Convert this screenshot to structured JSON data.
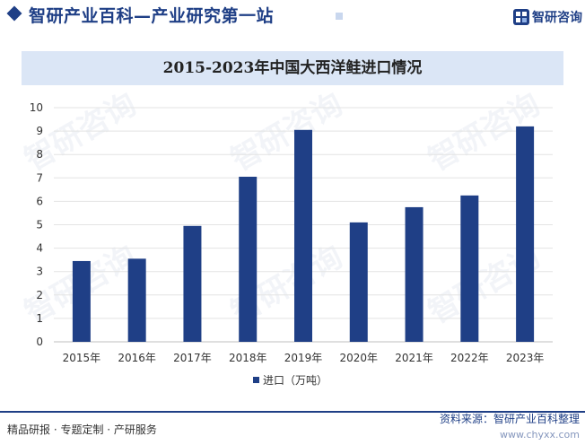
{
  "header": {
    "site_title": "智研产业百科—产业研究第一站",
    "logo_text": "智研咨询",
    "logo_icon": "zhiyan-logo-icon",
    "brand_color": "#1f3f86"
  },
  "watermark_text": "智研咨询",
  "chart_data": {
    "type": "bar",
    "title": "2015-2023年中国大西洋鲑进口情况",
    "categories": [
      "2015年",
      "2016年",
      "2017年",
      "2018年",
      "2019年",
      "2020年",
      "2021年",
      "2022年",
      "2023年"
    ],
    "series": [
      {
        "name": "进口（万吨）",
        "values": [
          3.45,
          3.55,
          4.95,
          7.05,
          9.05,
          5.1,
          5.75,
          6.25,
          9.2
        ],
        "color": "#1f3f86"
      }
    ],
    "ylim": [
      0,
      10
    ],
    "yticks": [
      0,
      1,
      2,
      3,
      4,
      5,
      6,
      7,
      8,
      9,
      10
    ],
    "grid": true,
    "legend": "bottom"
  },
  "footer": {
    "left": "精品研报 · 专题定制 · 产研服务",
    "right": "资料来源：智研产业百科整理",
    "url": "www.chyxx.com"
  }
}
